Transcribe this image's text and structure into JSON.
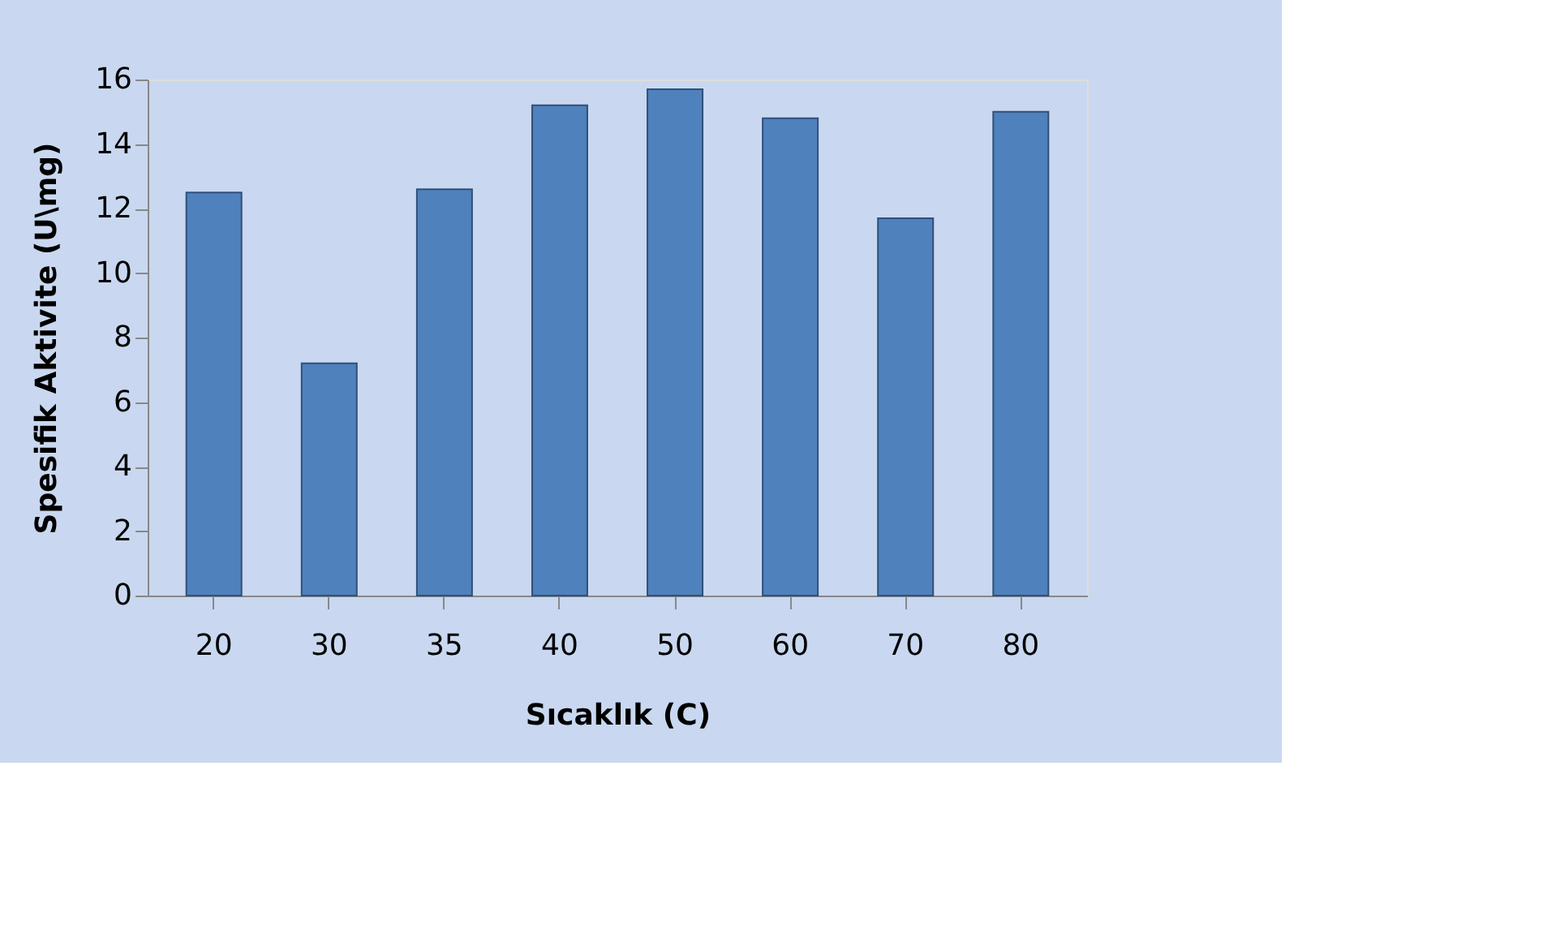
{
  "chart_data": {
    "type": "bar",
    "xlabel": "Sıcaklık (C)",
    "ylabel": "Spesifik Aktivite (U\\mg)",
    "categories": [
      "20",
      "30",
      "35",
      "40",
      "50",
      "60",
      "70",
      "80"
    ],
    "values": [
      12.5,
      7.2,
      12.6,
      15.2,
      15.7,
      14.8,
      11.7,
      15.0
    ],
    "color": "#4f81bd",
    "ylim": [
      0,
      16
    ],
    "yticks": [
      0,
      2,
      4,
      6,
      8,
      10,
      12,
      14,
      16
    ],
    "grid": false
  }
}
